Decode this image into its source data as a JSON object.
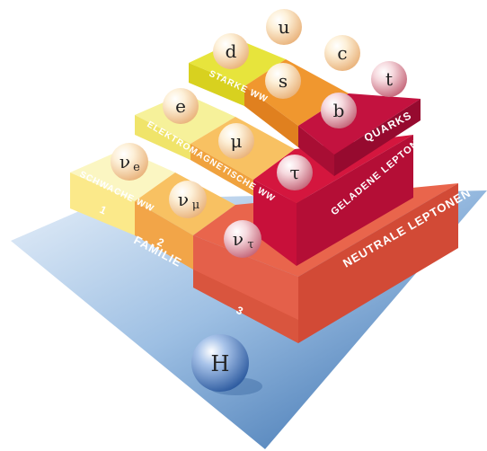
{
  "colors": {
    "base_blue_light": "#c7dbf0",
    "base_blue_dark": "#2f67a8",
    "strong_yellow": "#e7e43c",
    "strong_orange": "#f0972f",
    "strong_magenta": "#c3123f",
    "em_yellow": "#f6f19a",
    "em_orange": "#f8c162",
    "em_crimson": "#d4163e",
    "weak_yellow": "#fbf6c2",
    "weak_orange": "#f7b15e",
    "weak_red": "#e4604a",
    "higgs_blue": "#4d7ec2"
  },
  "labels": {
    "starke_ww": "STARKE WW",
    "quarks": "QUARKS",
    "elektromagnetische_ww": "ELEKTROMAGNETISCHE WW",
    "geladene_leptonen": "GELADENE LEPTONEN",
    "schwache_ww": "SCHWACHE WW",
    "neutrale_leptonen": "NEUTRALE LEPTONEN",
    "familie": "FAMILIE",
    "fam1": "1",
    "fam2": "2",
    "fam3": "3"
  },
  "particles": {
    "u": "u",
    "d": "d",
    "c": "c",
    "s": "s",
    "t": "t",
    "b": "b",
    "e": "e",
    "mu": "μ",
    "tau": "τ",
    "nu_e": "ν",
    "nu_e_sub": "e",
    "nu_mu": "ν",
    "nu_mu_sub": "μ",
    "nu_tau": "ν",
    "nu_tau_sub": "τ",
    "higgs": "H"
  }
}
